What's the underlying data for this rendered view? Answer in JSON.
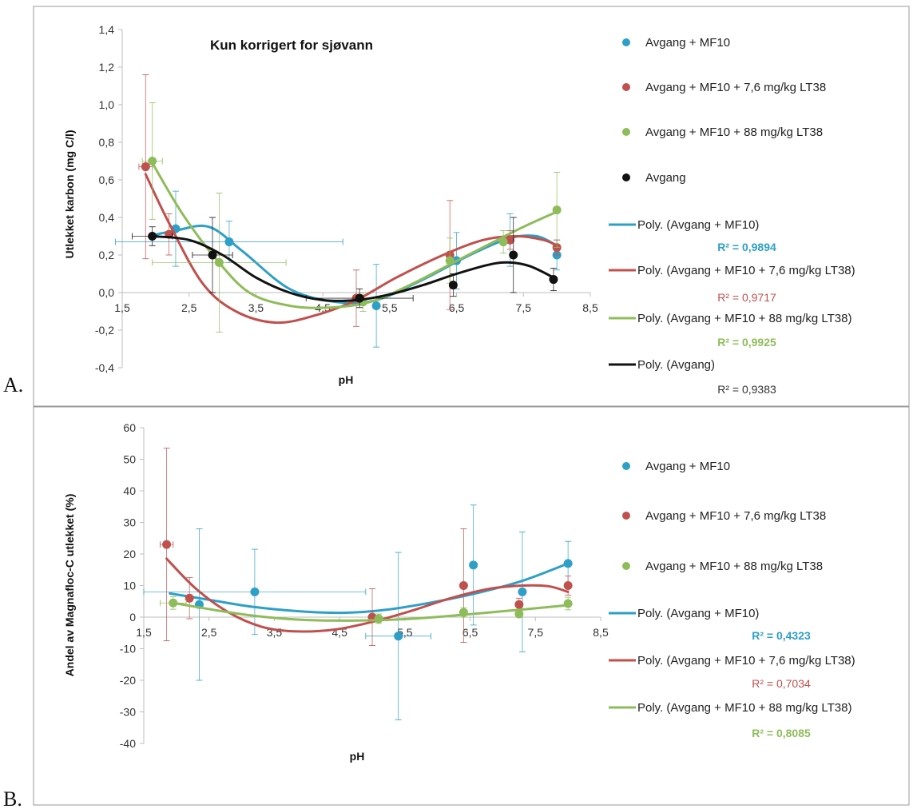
{
  "chart_data": [
    {
      "type": "scatter",
      "panel_label": "A.",
      "title": "Kun korrigert for sjøvann",
      "xlabel": "pH",
      "ylabel": "Utlekket karbon (mg C/l)",
      "xlim": [
        1.5,
        8.5
      ],
      "ylim": [
        -0.4,
        1.4
      ],
      "xticks": [
        "1,5",
        "2,5",
        "3,5",
        "4,5",
        "5,5",
        "6,5",
        "7,5",
        "8,5"
      ],
      "yticks": [
        "1,4",
        "1,2",
        "1,0",
        "0,8",
        "0,6",
        "0,4",
        "0,2",
        "0,0",
        "-0,2",
        "-0,4"
      ],
      "grid": false,
      "legend_position": "right",
      "series": [
        {
          "name": "Avgang + MF10",
          "color": "#2e9fc7",
          "points": [
            {
              "x": 2.3,
              "y": 0.34,
              "ye": 0.2
            },
            {
              "x": 3.1,
              "y": 0.27,
              "ye": 0.11,
              "xe": 1.7
            },
            {
              "x": 5.3,
              "y": -0.07,
              "ye": 0.22
            },
            {
              "x": 6.5,
              "y": 0.17,
              "ye": 0.15
            },
            {
              "x": 7.3,
              "y": 0.28,
              "ye": 0.14
            },
            {
              "x": 8.0,
              "y": 0.2,
              "ye": 0.08
            }
          ],
          "fit_label": "Poly. (Avgang + MF10)",
          "r2": "R² = 0,9894",
          "fit": [
            [
              1.9,
              0.3
            ],
            [
              2.3,
              0.33
            ],
            [
              2.8,
              0.35
            ],
            [
              3.3,
              0.22
            ],
            [
              4.0,
              0.02
            ],
            [
              4.7,
              -0.05
            ],
            [
              5.3,
              -0.04
            ],
            [
              6.0,
              0.07
            ],
            [
              6.7,
              0.2
            ],
            [
              7.3,
              0.29
            ],
            [
              7.7,
              0.3
            ],
            [
              8.0,
              0.25
            ]
          ]
        },
        {
          "name": "Avgang + MF10 + 7,6 mg/kg LT38",
          "color": "#c0504d",
          "points": [
            {
              "x": 1.85,
              "y": 0.67,
              "ye": 0.49,
              "xe": 0.1
            },
            {
              "x": 2.2,
              "y": 0.31,
              "ye": 0.11
            },
            {
              "x": 5.0,
              "y": -0.03,
              "ye": 0.15
            },
            {
              "x": 6.4,
              "y": 0.2,
              "ye": 0.29
            },
            {
              "x": 7.3,
              "y": 0.28,
              "ye": 0.05
            },
            {
              "x": 8.0,
              "y": 0.24,
              "ye": 0.04
            }
          ],
          "fit_label": "Poly. (Avgang + MF10 + 7,6 mg/kg LT38)",
          "r2": "R² = 0,9717",
          "fit": [
            [
              1.85,
              0.63
            ],
            [
              2.2,
              0.37
            ],
            [
              2.7,
              0.05
            ],
            [
              3.2,
              -0.1
            ],
            [
              3.8,
              -0.16
            ],
            [
              4.4,
              -0.12
            ],
            [
              5.0,
              -0.04
            ],
            [
              5.6,
              0.08
            ],
            [
              6.3,
              0.2
            ],
            [
              6.9,
              0.28
            ],
            [
              7.4,
              0.3
            ],
            [
              7.8,
              0.28
            ],
            [
              8.0,
              0.25
            ]
          ]
        },
        {
          "name": "Avgang + MF10 + 88 mg/kg LT38",
          "color": "#8fbc5a",
          "points": [
            {
              "x": 1.95,
              "y": 0.7,
              "ye": 0.31,
              "xe": 0.15
            },
            {
              "x": 2.95,
              "y": 0.16,
              "ye": 0.37,
              "xe": 1.0
            },
            {
              "x": 5.1,
              "y": -0.05,
              "ye": 0.05
            },
            {
              "x": 6.4,
              "y": 0.17,
              "ye": 0.12
            },
            {
              "x": 7.2,
              "y": 0.27,
              "ye": 0.06
            },
            {
              "x": 8.0,
              "y": 0.44,
              "ye": 0.2
            }
          ],
          "fit_label": "Poly. (Avgang + MF10 + 88 mg/kg LT38)",
          "r2": "R² = 0,9925",
          "fit": [
            [
              1.95,
              0.69
            ],
            [
              2.4,
              0.42
            ],
            [
              2.9,
              0.18
            ],
            [
              3.4,
              0.0
            ],
            [
              4.0,
              -0.07
            ],
            [
              4.6,
              -0.08
            ],
            [
              5.2,
              -0.05
            ],
            [
              5.8,
              0.04
            ],
            [
              6.4,
              0.15
            ],
            [
              7.0,
              0.26
            ],
            [
              7.5,
              0.35
            ],
            [
              8.0,
              0.43
            ]
          ]
        },
        {
          "name": "Avgang",
          "color": "#111111",
          "points": [
            {
              "x": 1.95,
              "y": 0.3,
              "ye": 0.05,
              "xe": 0.3
            },
            {
              "x": 2.85,
              "y": 0.2,
              "ye": 0.2,
              "xe": 0.3
            },
            {
              "x": 5.05,
              "y": -0.03,
              "ye": 0.05,
              "xe": 0.8
            },
            {
              "x": 6.45,
              "y": 0.04,
              "ye": 0.06
            },
            {
              "x": 7.35,
              "y": 0.2,
              "ye": 0.2
            },
            {
              "x": 7.95,
              "y": 0.07,
              "ye": 0.06
            }
          ],
          "fit_label": "Poly. (Avgang)",
          "r2": "R² = 0,9383",
          "fit": [
            [
              1.95,
              0.3
            ],
            [
              2.5,
              0.28
            ],
            [
              3.0,
              0.2
            ],
            [
              3.5,
              0.08
            ],
            [
              4.0,
              0.0
            ],
            [
              4.5,
              -0.04
            ],
            [
              5.0,
              -0.04
            ],
            [
              5.5,
              -0.01
            ],
            [
              6.0,
              0.04
            ],
            [
              6.5,
              0.1
            ],
            [
              7.0,
              0.15
            ],
            [
              7.3,
              0.16
            ],
            [
              7.6,
              0.14
            ],
            [
              7.95,
              0.08
            ]
          ]
        }
      ]
    },
    {
      "type": "scatter",
      "panel_label": "B.",
      "title": "",
      "xlabel": "pH",
      "ylabel": "Andel av Magnafloc-C utlekket (%)",
      "xlim": [
        1.5,
        8.5
      ],
      "ylim": [
        -40,
        60
      ],
      "xticks": [
        "1,5",
        "2,5",
        "3,5",
        "4,5",
        "5,5",
        "6,5",
        "7,5",
        "8,5"
      ],
      "yticks": [
        "60",
        "50",
        "40",
        "30",
        "20",
        "10",
        "0",
        "-10",
        "-20",
        "-30",
        "-40"
      ],
      "grid": false,
      "legend_position": "right",
      "series": [
        {
          "name": "Avgang + MF10",
          "color": "#2e9fc7",
          "points": [
            {
              "x": 2.35,
              "y": 4,
              "ye": 24
            },
            {
              "x": 3.2,
              "y": 8,
              "ye": 13.5,
              "xe": 1.7
            },
            {
              "x": 5.4,
              "y": -6,
              "ye": 26.5,
              "xe": 0.5
            },
            {
              "x": 6.55,
              "y": 16.5,
              "ye": 19
            },
            {
              "x": 7.3,
              "y": 8,
              "ye": 19
            },
            {
              "x": 8.0,
              "y": 17,
              "ye": 7
            }
          ],
          "fit_label": "Poly. (Avgang + MF10)",
          "r2": "R² = 0,4323",
          "fit": [
            [
              1.9,
              7.5
            ],
            [
              2.5,
              5.5
            ],
            [
              3.2,
              3.2
            ],
            [
              4.0,
              1.7
            ],
            [
              4.6,
              1.4
            ],
            [
              5.2,
              2.3
            ],
            [
              5.9,
              4.6
            ],
            [
              6.6,
              7.6
            ],
            [
              7.3,
              11.5
            ],
            [
              8.0,
              17
            ]
          ]
        },
        {
          "name": "Avgang + MF10 + 7,6 mg/kg LT38",
          "color": "#c0504d",
          "points": [
            {
              "x": 1.85,
              "y": 23,
              "ye": 30.5,
              "xe": 0.1
            },
            {
              "x": 2.2,
              "y": 6,
              "ye": 6.5
            },
            {
              "x": 5.0,
              "y": 0,
              "ye": 9
            },
            {
              "x": 6.4,
              "y": 10,
              "ye": 18
            },
            {
              "x": 7.25,
              "y": 4,
              "ye": 2
            },
            {
              "x": 8.0,
              "y": 10,
              "ye": 3
            }
          ],
          "fit_label": "Poly. (Avgang + MF10 + 7,6 mg/kg LT38)",
          "r2": "R² = 0,7034",
          "fit": [
            [
              1.85,
              18.5
            ],
            [
              2.3,
              9
            ],
            [
              2.8,
              1.5
            ],
            [
              3.3,
              -3
            ],
            [
              3.8,
              -4.5
            ],
            [
              4.4,
              -4
            ],
            [
              5.0,
              -1.5
            ],
            [
              5.6,
              2
            ],
            [
              6.2,
              6
            ],
            [
              6.8,
              9
            ],
            [
              7.3,
              10
            ],
            [
              7.7,
              9.8
            ],
            [
              8.0,
              8
            ]
          ]
        },
        {
          "name": "Avgang + MF10 + 88 mg/kg LT38",
          "color": "#8fbc5a",
          "points": [
            {
              "x": 1.95,
              "y": 4.5,
              "ye": 2,
              "xe": 0.2
            },
            {
              "x": 5.1,
              "y": -0.5,
              "ye": 1.5
            },
            {
              "x": 6.4,
              "y": 1.5,
              "ye": 1.5
            },
            {
              "x": 7.25,
              "y": 1,
              "ye": 1
            },
            {
              "x": 8.0,
              "y": 4.3,
              "ye": 2
            }
          ],
          "fit_label": "Poly. (Avgang + MF10 + 88 mg/kg LT38)",
          "r2": "R² = 0,8085",
          "fit": [
            [
              1.95,
              4.5
            ],
            [
              2.6,
              2.2
            ],
            [
              3.2,
              0.4
            ],
            [
              3.8,
              -0.7
            ],
            [
              4.4,
              -1.1
            ],
            [
              5.0,
              -1
            ],
            [
              5.6,
              -0.5
            ],
            [
              6.2,
              0.4
            ],
            [
              6.8,
              1.5
            ],
            [
              7.4,
              2.6
            ],
            [
              8.0,
              3.8
            ]
          ]
        }
      ]
    }
  ]
}
